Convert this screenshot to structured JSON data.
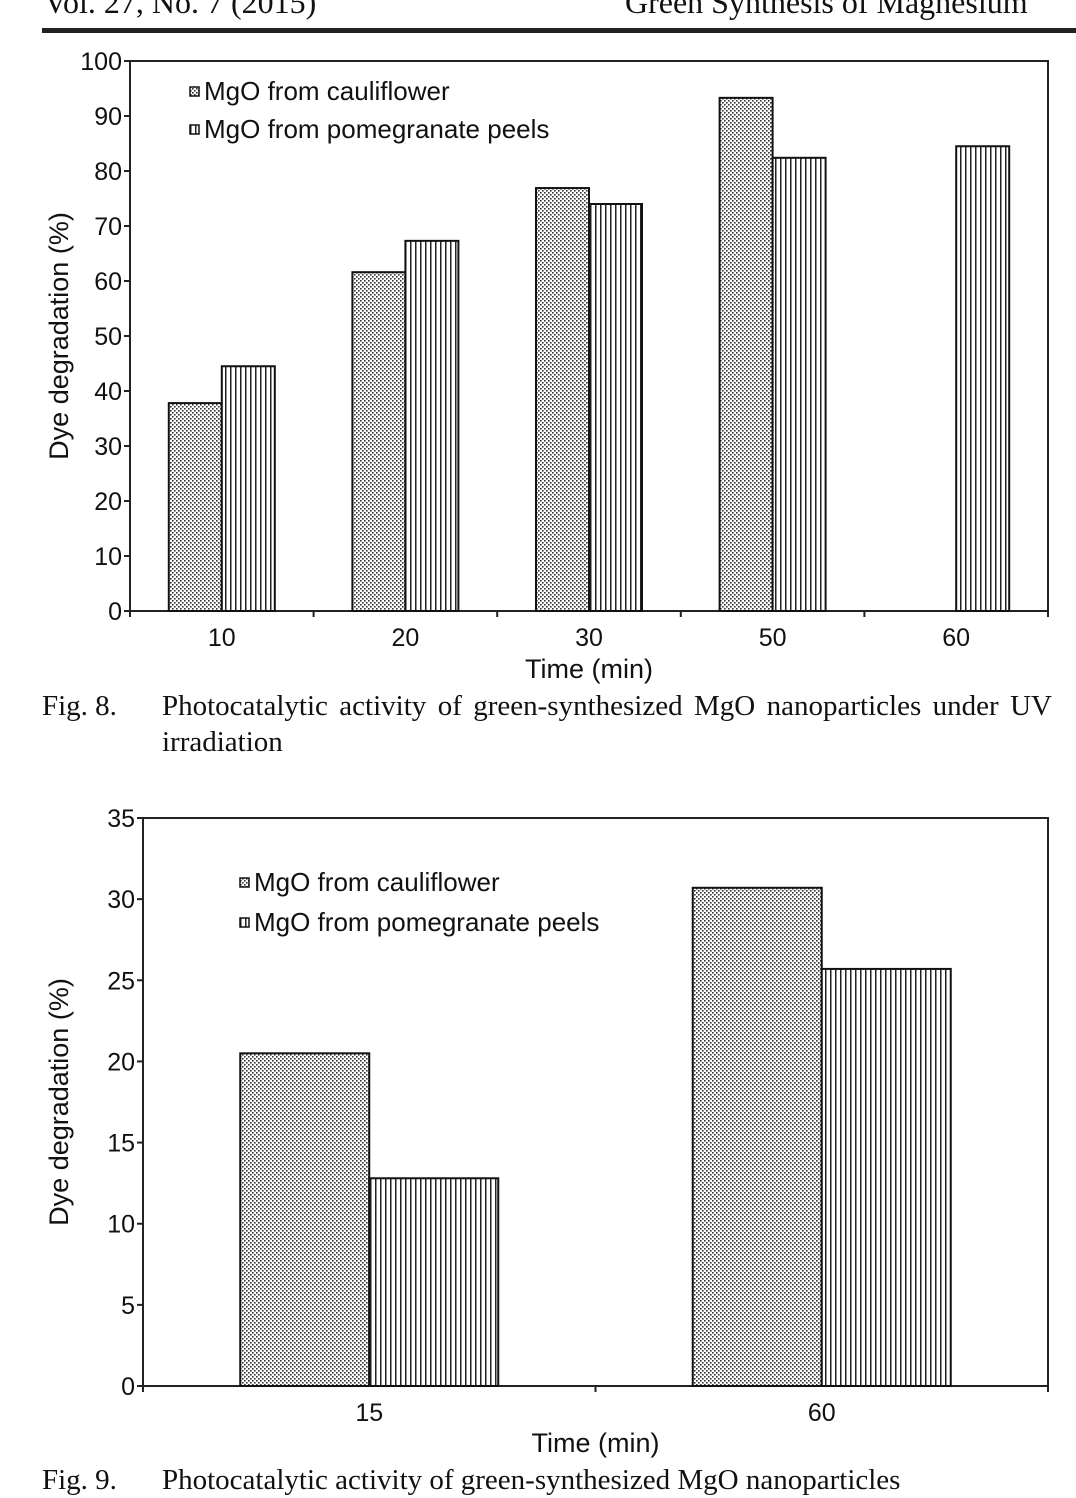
{
  "header": {
    "left": "Vol. 27, No. 7 (2015)",
    "right": "Green Synthesis of Magnesium"
  },
  "figures": [
    {
      "caption_number": "Fig. 8.",
      "caption": "Photocatalytic activity of green-synthesized MgO nanoparticles under UV irradiation"
    },
    {
      "caption_number": "Fig. 9.",
      "caption": "Photocatalytic activity of green-synthesized MgO nanoparticles"
    }
  ],
  "chart_data": [
    {
      "type": "bar",
      "xlabel": "Time (min)",
      "ylabel": "Dye degradation (%)",
      "categories": [
        "10",
        "20",
        "30",
        "50",
        "60"
      ],
      "ylim": [
        0,
        100
      ],
      "yticks": [
        0,
        10,
        20,
        30,
        40,
        50,
        60,
        70,
        80,
        90,
        100
      ],
      "grid": false,
      "legend": "top-left",
      "series": [
        {
          "name": "MgO from cauliflower",
          "pattern": "dotted",
          "values": [
            37.8,
            61.6,
            76.9,
            93.3,
            0
          ]
        },
        {
          "name": "MgO from pomegranate peels",
          "pattern": "vertical-lines",
          "values": [
            44.5,
            67.3,
            74.0,
            82.4,
            84.5
          ]
        }
      ]
    },
    {
      "type": "bar",
      "xlabel": "Time (min)",
      "ylabel": "Dye degradation (%)",
      "categories": [
        "15",
        "60"
      ],
      "ylim": [
        0,
        35
      ],
      "yticks": [
        0,
        5,
        10,
        15,
        20,
        25,
        30,
        35
      ],
      "grid": false,
      "legend": "top-left",
      "series": [
        {
          "name": "MgO from cauliflower",
          "pattern": "dotted",
          "values": [
            20.5,
            30.7
          ]
        },
        {
          "name": "MgO from pomegranate peels",
          "pattern": "vertical-lines",
          "values": [
            12.8,
            25.7
          ]
        }
      ]
    }
  ]
}
